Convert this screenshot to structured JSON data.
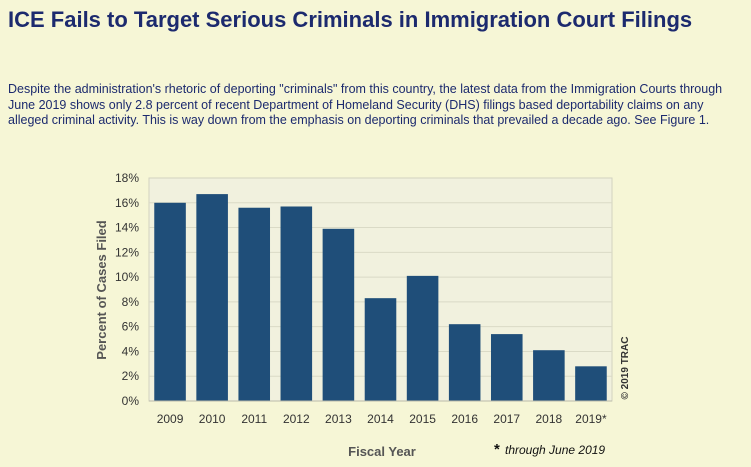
{
  "header": {
    "title": "ICE Fails to Target Serious Criminals in Immigration Court Filings"
  },
  "intro": {
    "text": "Despite the administration's rhetoric of deporting \"criminals\" from this country, the latest data from the Immigration Courts through June 2019 shows only 2.8 percent of recent Department of Homeland Security (DHS) filings based deportability claims on any alleged criminal activity. This is way down from the emphasis on deporting criminals that prevailed a decade ago. See Figure 1."
  },
  "colors": {
    "background": "#f6f6d6",
    "plot_background": "#f1f1de",
    "bar": "#1f4e79",
    "title": "#1c2a6e"
  },
  "chart_data": {
    "type": "bar",
    "title": "",
    "xlabel": "Fiscal Year",
    "ylabel": "Percent of Cases Filed",
    "categories": [
      "2009",
      "2010",
      "2011",
      "2012",
      "2013",
      "2014",
      "2015",
      "2016",
      "2017",
      "2018",
      "2019*"
    ],
    "values": [
      16.0,
      16.7,
      15.6,
      15.7,
      13.9,
      8.3,
      10.1,
      6.2,
      5.4,
      4.1,
      2.8
    ],
    "ylim": [
      0,
      18
    ],
    "yticks": [
      0,
      2,
      4,
      6,
      8,
      10,
      12,
      14,
      16,
      18
    ],
    "ytick_labels": [
      "0%",
      "2%",
      "4%",
      "6%",
      "8%",
      "10%",
      "12%",
      "14%",
      "16%",
      "18%"
    ],
    "grid": true,
    "footnote_marker": "*",
    "footnote_text": "through June 2019",
    "copyright": "© 2019 TRAC"
  }
}
